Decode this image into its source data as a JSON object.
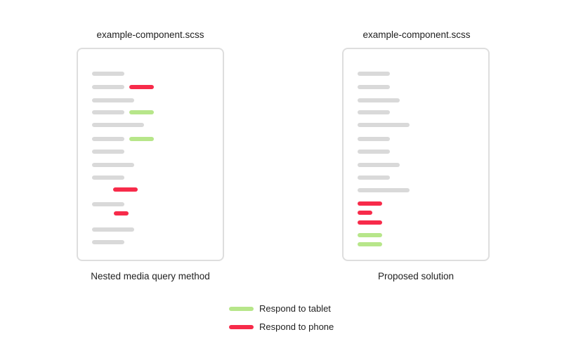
{
  "panels": [
    {
      "title": "example-component.scss",
      "caption": "Nested media query method",
      "lines": [
        {
          "type": "gray"
        },
        {
          "type": "gray"
        },
        {
          "type": "red"
        },
        {
          "type": "gray"
        },
        {
          "type": "gray"
        },
        {
          "type": "green"
        },
        {
          "type": "gray"
        },
        {
          "type": "gray"
        },
        {
          "type": "green"
        },
        {
          "type": "gray"
        },
        {
          "type": "gray"
        },
        {
          "type": "gray"
        },
        {
          "type": "red"
        },
        {
          "type": "gray"
        },
        {
          "type": "red"
        },
        {
          "type": "gray"
        },
        {
          "type": "gray"
        }
      ]
    },
    {
      "title": "example-component.scss",
      "caption": "Proposed solution",
      "lines": [
        {
          "type": "gray"
        },
        {
          "type": "gray"
        },
        {
          "type": "gray"
        },
        {
          "type": "gray"
        },
        {
          "type": "gray"
        },
        {
          "type": "gray"
        },
        {
          "type": "gray"
        },
        {
          "type": "gray"
        },
        {
          "type": "gray"
        },
        {
          "type": "gray"
        },
        {
          "type": "red"
        },
        {
          "type": "red"
        },
        {
          "type": "red"
        },
        {
          "type": "green"
        },
        {
          "type": "green"
        }
      ]
    }
  ],
  "legend": [
    {
      "type": "green",
      "label": "Respond to tablet"
    },
    {
      "type": "red",
      "label": "Respond to phone"
    }
  ],
  "colors": {
    "gray": "#d9d9d9",
    "green": "#b7e68a",
    "red": "#f72b4a",
    "border": "#dedede"
  }
}
